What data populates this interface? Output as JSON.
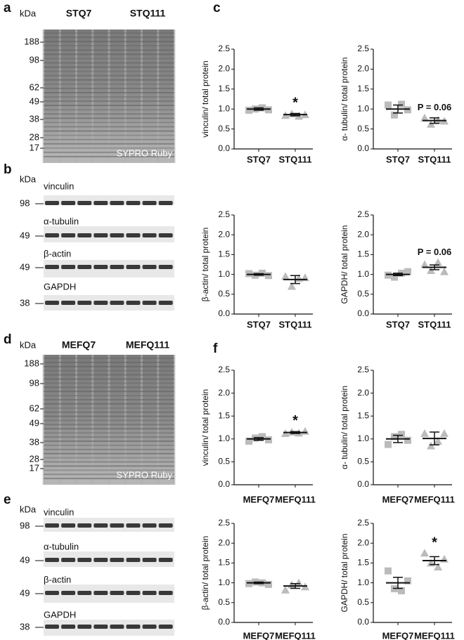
{
  "figure": {
    "chart_panel_labels": [
      "c",
      "f"
    ],
    "gels": [
      {
        "label": "a",
        "unit": "kDa",
        "groups": [
          "STQ7",
          "STQ111"
        ],
        "markers": [
          188,
          98,
          62,
          49,
          38,
          28,
          17
        ],
        "stain": "SYPRO Ruby"
      },
      {
        "label": "d",
        "unit": "kDa",
        "groups": [
          "MEFQ7",
          "MEFQ111"
        ],
        "markers": [
          188,
          98,
          62,
          49,
          38,
          28,
          17
        ],
        "stain": "SYPRO Ruby"
      }
    ],
    "blots": [
      {
        "label": "b",
        "unit": "kDa",
        "proteins": [
          {
            "name": "vinculin",
            "marker": 98
          },
          {
            "name": "α-tubulin",
            "marker": 49
          },
          {
            "name": "β-actin",
            "marker": 49
          },
          {
            "name": "GAPDH",
            "marker": 38
          }
        ]
      },
      {
        "label": "e",
        "unit": "kDa",
        "proteins": [
          {
            "name": "vinculin",
            "marker": 98
          },
          {
            "name": "α-tubulin",
            "marker": 49
          },
          {
            "name": "β-actin",
            "marker": 49
          },
          {
            "name": "GAPDH",
            "marker": 38
          }
        ]
      }
    ]
  },
  "chart_data": [
    {
      "type": "dot",
      "ylabel": "vinculin/ total protein",
      "categories": [
        "STQ7",
        "STQ111"
      ],
      "values": [
        [
          0.97,
          1.0,
          1.03,
          0.98
        ],
        [
          0.84,
          0.88,
          0.82,
          0.86
        ]
      ],
      "means": [
        1.0,
        0.86
      ],
      "errors": [
        0.03,
        0.03
      ],
      "annotation": "*",
      "color": "#bbbbbb",
      "ylim": [
        0,
        2.5
      ],
      "yticks": [
        {
          "value": 0,
          "label": "0.0"
        },
        0.5,
        {
          "value": 1,
          "label": "1.0"
        },
        1.5,
        {
          "value": 2,
          "label": "2.0"
        },
        2.5
      ]
    },
    {
      "type": "dot",
      "ylabel": "α- tubulin/ total protein",
      "categories": [
        "STQ7",
        "STQ111"
      ],
      "values": [
        [
          1.1,
          0.85,
          1.12,
          0.98
        ],
        [
          0.78,
          0.62,
          0.72,
          0.7
        ]
      ],
      "means": [
        1.0,
        0.71
      ],
      "errors": [
        0.1,
        0.07
      ],
      "annotation": "P = 0.06",
      "color": "#bbbbbb",
      "ylim": [
        0,
        2.5
      ],
      "yticks": [
        {
          "value": 0,
          "label": "0.0"
        },
        0.5,
        {
          "value": 1,
          "label": "1.0"
        },
        1.5,
        {
          "value": 2,
          "label": "2.0"
        },
        2.5
      ]
    },
    {
      "type": "dot",
      "ylabel": "β-actin/ total protein",
      "categories": [
        "STQ7",
        "STQ111"
      ],
      "values": [
        [
          1.02,
          0.98,
          1.03,
          0.97
        ],
        [
          0.95,
          0.7,
          0.9,
          0.92
        ]
      ],
      "means": [
        1.0,
        0.87
      ],
      "errors": [
        0.02,
        0.1
      ],
      "color": "#bbbbbb",
      "ylim": [
        0,
        2.5
      ],
      "yticks": [
        {
          "value": 0,
          "label": "0.0"
        },
        0.5,
        {
          "value": 1,
          "label": "1.0"
        },
        1.5,
        {
          "value": 2,
          "label": "2.0"
        },
        2.5
      ]
    },
    {
      "type": "dot",
      "ylabel": "GAPDH/ total protein",
      "categories": [
        "STQ7",
        "STQ111"
      ],
      "values": [
        [
          0.98,
          0.93,
          1.03,
          1.07
        ],
        [
          1.25,
          1.1,
          1.3,
          1.07
        ]
      ],
      "means": [
        1.0,
        1.18
      ],
      "errors": [
        0.03,
        0.06
      ],
      "annotation": "P = 0.06",
      "color": "#bbbbbb",
      "ylim": [
        0,
        2.5
      ],
      "yticks": [
        {
          "value": 0,
          "label": "0.0"
        },
        0.5,
        {
          "value": 1,
          "label": "1.0"
        },
        1.5,
        {
          "value": 2,
          "label": "2.0"
        },
        2.5
      ]
    },
    {
      "type": "dot",
      "ylabel": "vinculin/ total protein",
      "categories": [
        "MEFQ7",
        "MEFQ111"
      ],
      "values": [
        [
          0.95,
          1.02,
          1.05,
          0.98
        ],
        [
          1.12,
          1.15,
          1.13,
          1.17
        ]
      ],
      "means": [
        1.0,
        1.14
      ],
      "errors": [
        0.03,
        0.02
      ],
      "annotation": "*",
      "color": "#bbbbbb",
      "ylim": [
        0,
        2.5
      ],
      "yticks": [
        {
          "value": 0,
          "label": "0.0"
        },
        0.5,
        {
          "value": 1,
          "label": "1.0"
        },
        1.5,
        {
          "value": 2,
          "label": "2.0"
        },
        2.5
      ]
    },
    {
      "type": "dot",
      "ylabel": "α- tubulin/ total protein",
      "categories": [
        "MEFQ7",
        "MEFQ111"
      ],
      "values": [
        [
          0.88,
          1.05,
          1.1,
          0.97
        ],
        [
          1.12,
          0.85,
          0.95,
          1.12
        ]
      ],
      "means": [
        1.0,
        1.01
      ],
      "errors": [
        0.08,
        0.14
      ],
      "color": "#bbbbbb",
      "ylim": [
        0,
        2.5
      ],
      "yticks": [
        {
          "value": 0,
          "label": "0.0"
        },
        0.5,
        {
          "value": 1,
          "label": "1.0"
        },
        1.5,
        {
          "value": 2,
          "label": "2.0"
        },
        2.5
      ]
    },
    {
      "type": "dot",
      "ylabel": "β-actin/ total protein",
      "categories": [
        "MEFQ7",
        "MEFQ111"
      ],
      "values": [
        [
          0.98,
          1.02,
          1.0,
          0.96
        ],
        [
          0.82,
          0.95,
          1.0,
          0.9
        ]
      ],
      "means": [
        1.0,
        0.92
      ],
      "errors": [
        0.02,
        0.06
      ],
      "color": "#bbbbbb",
      "ylim": [
        0,
        2.5
      ],
      "yticks": [
        {
          "value": 0,
          "label": "0.0"
        },
        0.5,
        {
          "value": 1,
          "label": "1.0"
        },
        1.5,
        {
          "value": 2,
          "label": "2.0"
        },
        2.5
      ]
    },
    {
      "type": "dot",
      "ylabel": "GAPDH/ total protein",
      "categories": [
        "MEFQ7",
        "MEFQ111"
      ],
      "values": [
        [
          1.3,
          0.85,
          0.8,
          1.05
        ],
        [
          1.75,
          1.5,
          1.4,
          1.6
        ]
      ],
      "means": [
        1.0,
        1.56
      ],
      "errors": [
        0.14,
        0.1
      ],
      "annotation": "*",
      "color": "#bbbbbb",
      "ylim": [
        0,
        2.5
      ],
      "yticks": [
        {
          "value": 0,
          "label": "0.0"
        },
        0.5,
        {
          "value": 1,
          "label": "1.0"
        },
        1.5,
        {
          "value": 2,
          "label": "2.0"
        },
        2.5
      ]
    }
  ]
}
